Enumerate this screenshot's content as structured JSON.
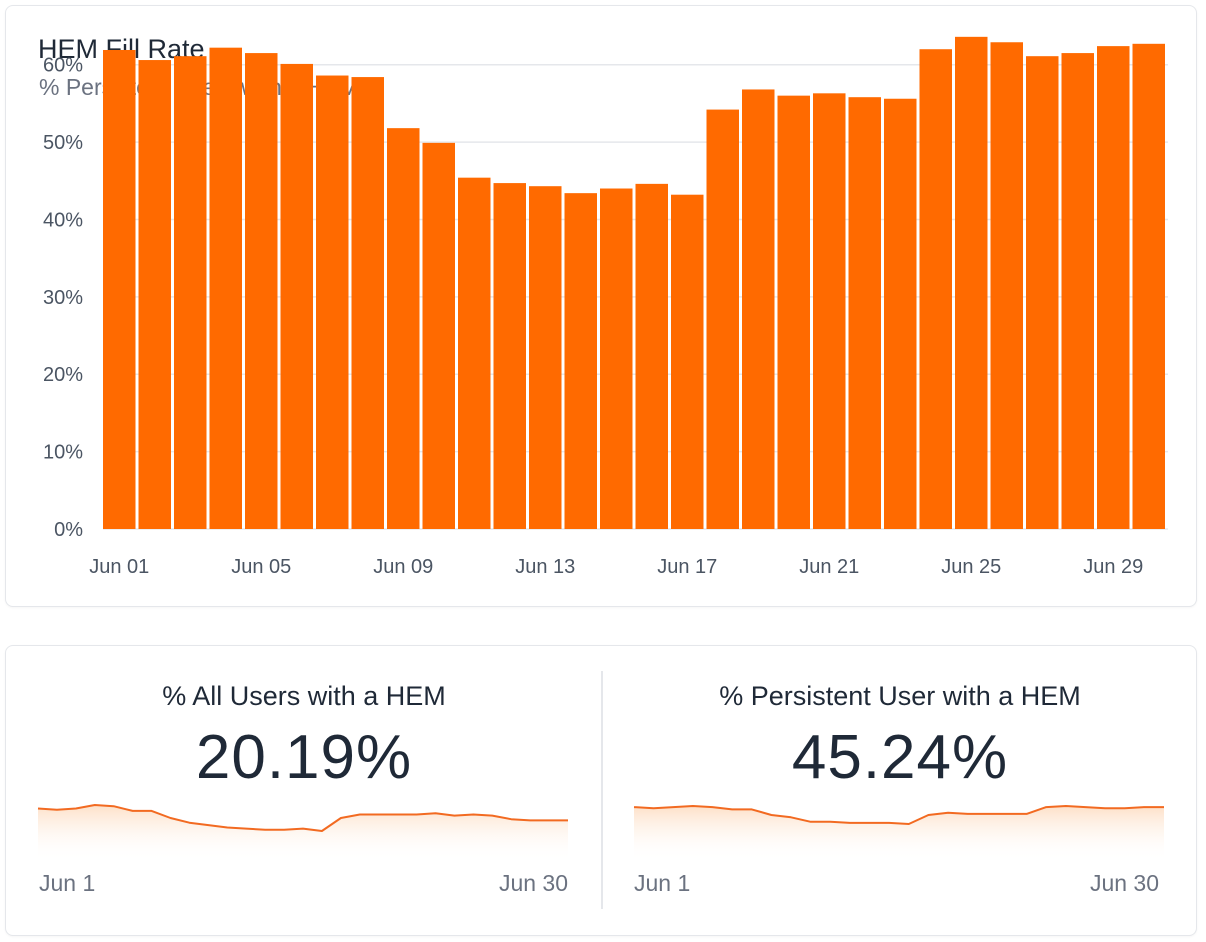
{
  "main_card": {
    "title": "HEM Fill Rate",
    "subtitle": "% Persistent Users with a HEM"
  },
  "chart_data": {
    "type": "bar",
    "title": "HEM Fill Rate",
    "subtitle": "% Persistent Users with a HEM",
    "xlabel": "",
    "ylabel": "",
    "categories": [
      "Jun 01",
      "Jun 02",
      "Jun 03",
      "Jun 04",
      "Jun 05",
      "Jun 06",
      "Jun 07",
      "Jun 08",
      "Jun 09",
      "Jun 10",
      "Jun 11",
      "Jun 12",
      "Jun 13",
      "Jun 14",
      "Jun 15",
      "Jun 16",
      "Jun 17",
      "Jun 18",
      "Jun 19",
      "Jun 20",
      "Jun 21",
      "Jun 22",
      "Jun 23",
      "Jun 24",
      "Jun 25",
      "Jun 26",
      "Jun 27",
      "Jun 28",
      "Jun 29",
      "Jun 30"
    ],
    "values": [
      61.9,
      60.6,
      61.1,
      62.2,
      61.5,
      60.1,
      58.6,
      58.4,
      51.8,
      49.9,
      45.4,
      44.7,
      44.3,
      43.4,
      44.0,
      44.6,
      43.2,
      54.2,
      56.8,
      56.0,
      56.3,
      55.8,
      55.6,
      62.0,
      63.6,
      62.9,
      61.1,
      61.5,
      62.4,
      62.7
    ],
    "ylim": [
      0,
      65
    ],
    "yticks": [
      "0%",
      "10%",
      "20%",
      "30%",
      "40%",
      "50%",
      "60%"
    ],
    "ytick_values": [
      0,
      10,
      20,
      30,
      40,
      50,
      60
    ],
    "xtick_labels": [
      "Jun 01",
      "Jun 05",
      "Jun 09",
      "Jun 13",
      "Jun 17",
      "Jun 21",
      "Jun 25",
      "Jun 29"
    ],
    "xtick_indices": [
      0,
      4,
      8,
      12,
      16,
      20,
      24,
      28
    ],
    "grid": true,
    "legend": "none",
    "bar_color": "#ff6a00"
  },
  "kpis": [
    {
      "title": "% All Users with a HEM",
      "value": "20.19%",
      "spark_start": "Jun 1",
      "spark_end": "Jun 30",
      "spark_values": [
        20.7,
        20.6,
        20.7,
        21.0,
        20.9,
        20.5,
        20.5,
        19.9,
        19.5,
        19.3,
        19.1,
        19.0,
        18.9,
        18.9,
        19.0,
        18.8,
        19.9,
        20.2,
        20.2,
        20.2,
        20.2,
        20.3,
        20.1,
        20.2,
        20.1,
        19.8,
        19.7,
        19.7,
        19.7
      ]
    },
    {
      "title": "% Persistent User with a HEM",
      "value": "45.24%",
      "spark_start": "Jun 1",
      "spark_end": "Jun 30",
      "spark_values": [
        46.2,
        46.1,
        46.2,
        46.3,
        46.2,
        46.0,
        46.0,
        45.5,
        45.3,
        44.9,
        44.9,
        44.8,
        44.8,
        44.8,
        44.7,
        45.5,
        45.7,
        45.6,
        45.6,
        45.6,
        45.6,
        46.2,
        46.3,
        46.2,
        46.1,
        46.1,
        46.2,
        46.2
      ]
    }
  ],
  "colors": {
    "accent": "#ff6a00",
    "spark_line": "#f26a21",
    "spark_fill_top": "#fde0c8",
    "grid": "#e5e7eb",
    "axis_text": "#4b5563"
  }
}
